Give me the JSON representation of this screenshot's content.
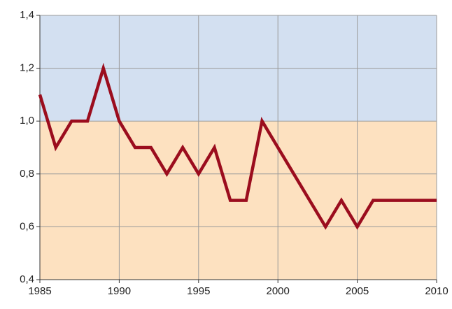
{
  "chart_data": {
    "type": "line",
    "x": [
      1985,
      1986,
      1987,
      1988,
      1989,
      1990,
      1991,
      1992,
      1993,
      1994,
      1995,
      1996,
      1997,
      1998,
      1999,
      2000,
      2001,
      2002,
      2003,
      2004,
      2005,
      2006,
      2007,
      2008,
      2009,
      2010
    ],
    "series": [
      {
        "color": "#9b0d1e",
        "values": [
          1.1,
          0.9,
          1.0,
          1.0,
          1.2,
          1.0,
          0.9,
          0.9,
          0.8,
          0.9,
          0.8,
          0.9,
          0.7,
          0.7,
          1.0,
          0.9,
          0.8,
          0.7,
          0.6,
          0.7,
          0.6,
          0.7,
          0.7,
          0.7,
          0.7,
          0.7
        ]
      }
    ],
    "xlim": [
      1985,
      2010
    ],
    "xticks": [
      1985,
      1990,
      1995,
      2000,
      2005,
      2010
    ],
    "ylim": [
      0.4,
      1.4
    ],
    "yticks": [
      {
        "value": 0.4,
        "label": "0,4"
      },
      {
        "value": 0.6,
        "label": "0,6"
      },
      {
        "value": 0.8,
        "label": "0,8"
      },
      {
        "value": 1.0,
        "label": "1,0"
      },
      {
        "value": 1.2,
        "label": "1,2"
      },
      {
        "value": 1.4,
        "label": "1,4"
      }
    ],
    "grid": true,
    "background_bands": [
      {
        "from": 1.0,
        "to": 1.4,
        "color": "#d3e0f1"
      },
      {
        "from": 0.4,
        "to": 1.0,
        "color": "#fde1c0"
      }
    ]
  }
}
